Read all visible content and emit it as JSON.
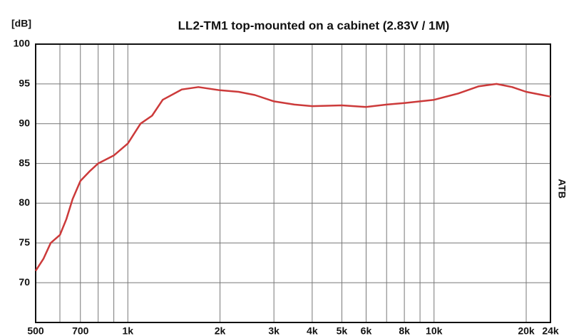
{
  "chart_data": {
    "type": "line",
    "title": "LL2-TM1 top-mounted on a cabinet (2.83V / 1M)",
    "y_label": "[dB]",
    "annotation": "ATB",
    "log_x": true,
    "grid": true,
    "xlim": [
      500,
      24000
    ],
    "ylim": [
      65,
      100
    ],
    "yticks": [
      70,
      75,
      80,
      85,
      90,
      95,
      100
    ],
    "xticks": [
      500,
      700,
      {
        "value": 1000,
        "label": "1k"
      },
      {
        "value": 2000,
        "label": "2k"
      },
      {
        "value": 3000,
        "label": "3k"
      },
      {
        "value": 4000,
        "label": "4k"
      },
      {
        "value": 5000,
        "label": "5k"
      },
      {
        "value": 6000,
        "label": "6k"
      },
      {
        "value": 8000,
        "label": "8k"
      },
      {
        "value": 10000,
        "label": "10k"
      },
      {
        "value": 20000,
        "label": "20k"
      },
      {
        "value": 24000,
        "label": "24k"
      }
    ],
    "xminor": [
      600,
      800,
      900,
      7000,
      9000
    ],
    "x": [
      500,
      530,
      560,
      600,
      630,
      660,
      700,
      750,
      800,
      900,
      1000,
      1100,
      1200,
      1300,
      1500,
      1700,
      2000,
      2300,
      2600,
      3000,
      3500,
      4000,
      5000,
      6000,
      7000,
      8000,
      10000,
      12000,
      14000,
      16000,
      18000,
      20000,
      24000
    ],
    "series": [
      {
        "color": "#cc3a3a",
        "values": [
          71.5,
          73,
          75,
          76,
          78,
          80.5,
          82.8,
          84,
          85,
          86,
          87.5,
          90,
          91,
          93,
          94.3,
          94.6,
          94.2,
          94,
          93.6,
          92.8,
          92.4,
          92.2,
          92.3,
          92.1,
          92.4,
          92.6,
          93,
          93.8,
          94.7,
          95,
          94.6,
          94,
          93.4
        ]
      }
    ]
  }
}
